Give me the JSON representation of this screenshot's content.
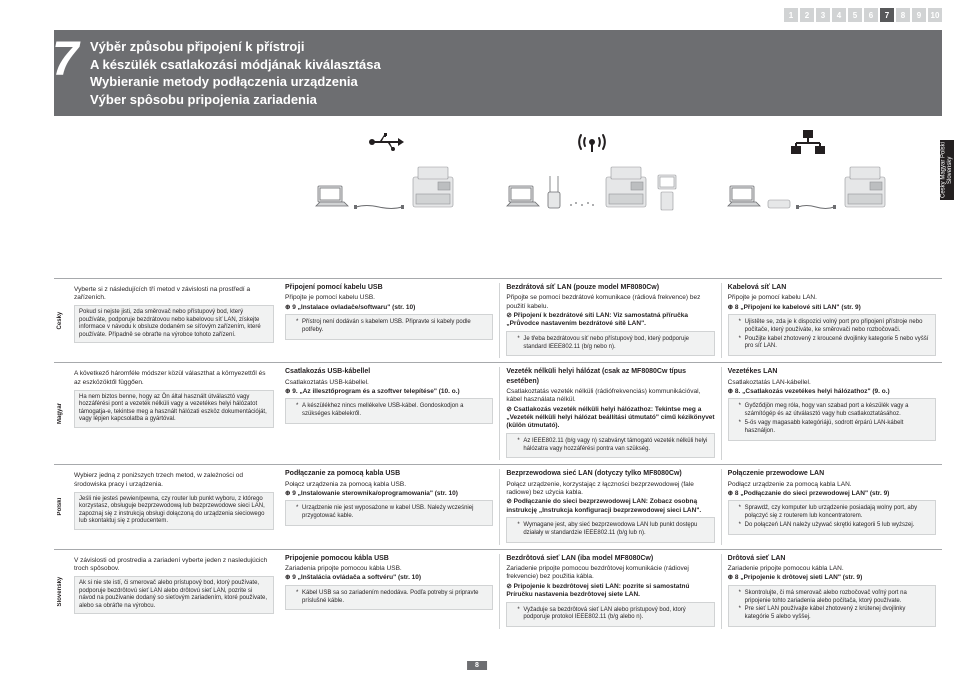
{
  "pager": {
    "items": [
      "1",
      "2",
      "3",
      "4",
      "5",
      "6",
      "7",
      "8",
      "9",
      "10"
    ],
    "active": 7
  },
  "side_tab": "Česky  Magyar\nPolski  Slovensky",
  "page_number": "8",
  "header": {
    "num": "7",
    "lines": [
      "Výběr způsobu připojení k přístroji",
      "A készülék csatlakozási módjának kiválasztása",
      "Wybieranie metody podłączenia urządzenia",
      "Výber spôsobu pripojenia zariadenia"
    ]
  },
  "rows": [
    {
      "lang": "Česky",
      "intro": "Vyberte si z následujících tří metod v závislosti na prostředí a zařízeních.",
      "intro_sub": "Pokud si nejste jisti, zda směrovač nebo přístupový bod, který používáte, podporuje bezdrátovou nebo kabelovou síť LAN, získejte informace v návodu k obsluze dodaném se síťovým zařízením, které používáte. Případně se obraťte na výrobce tohoto zařízení.",
      "c1": {
        "title": "Připojení pomocí kabelu USB",
        "desc": "Připojte je pomocí kabelu USB.",
        "ref": "9 „Instalace ovladače/softwaru\" (str. 10)",
        "note": [
          "Přístroj není dodáván s kabelem USB. Připravte si kabely podle potřeby."
        ]
      },
      "c2": {
        "title": "Bezdrátová síť LAN (pouze model MF8080Cw)",
        "desc": "Připojte se pomocí bezdrátové komunikace (rádiová frekvence) bez použití kabelu.",
        "warn": "Připojení k bezdrátové síti LAN: Viz samostatná příručka „Průvodce nastavením bezdrátové sítě LAN\".",
        "note": [
          "Je třeba bezdrátovou síť nebo přístupový bod, který podporuje standard IEEE802.11 (b/g nebo n)."
        ]
      },
      "c3": {
        "title": "Kabelová síť LAN",
        "desc": "Připojte je pomocí kabelu LAN.",
        "ref": "8 „Připojení ke kabelové síti LAN\" (str. 9)",
        "note": [
          "Ujistěte se, zda je k dispozici volný port pro připojení přístroje nebo počítače, který používáte, ke směrovači nebo rozbočovači.",
          "Použijte kabel zhotovený z kroucené dvojlinky kategorie 5 nebo vyšší pro síť LAN."
        ]
      }
    },
    {
      "lang": "Magyar",
      "intro": "A következő háromféle módszer közül választhat a környezettől és az eszközöktől függően.",
      "intro_sub": "Ha nem biztos benne, hogy az Ön által használt útválasztó vagy hozzáférési pont a vezeték nélküli vagy a vezetékes helyi hálózatot támogatja-e, tekintse meg a használt hálózati eszköz dokumentációját, vagy lépjen kapcsolatba a gyártóval.",
      "c1": {
        "title": "Csatlakozás USB-kábellel",
        "desc": "Csatlakoztatás USB-kábellel.",
        "ref": "9. „Az illesztőprogram és a szoftver telepítése\" (10. o.)",
        "note": [
          "A készülékhez nincs mellékelve USB-kábel. Gondoskodjon a szükséges kábelekről."
        ]
      },
      "c2": {
        "title": "Vezeték nélküli helyi hálózat (csak az MF8080Cw típus esetében)",
        "desc": "Csatlakoztatás vezeték nélküli (rádiófrekvenciás) kommunikációval, kábel használata nélkül.",
        "warn": "Csatlakozás vezeték nélküli helyi hálózathoz: Tekintse meg a „Vezeték nélküli helyi hálózat beállítási útmutató\" című kézikönyvet (külön útmutató).",
        "note": [
          "Az IEEE802.11 (b/g vagy n) szabványt támogató vezeték nélküli helyi hálózatra vagy hozzáférési pontra van szükség."
        ]
      },
      "c3": {
        "title": "Vezetékes LAN",
        "desc": "Csatlakoztatás LAN-kábellel.",
        "ref": "8. „Csatlakozás vezetékes helyi hálózathoz\" (9. o.)",
        "note": [
          "Győződjön meg róla, hogy van szabad port a készülék vagy a számítógép és az útválasztó vagy hub csatlakoztatásához.",
          "5-ös vagy magasabb kategóriájú, sodrott érpárú LAN-kábelt használjon."
        ]
      }
    },
    {
      "lang": "Polski",
      "intro": "Wybierz jedną z poniższych trzech metod, w zależności od środowiska pracy i urządzenia.",
      "intro_sub": "Jeśli nie jesteś pewien/pewna, czy router lub punkt wyboru, z którego korzystasz, obsługuje bezprzewodową lub bezprzewodowe sieci LAN, zapoznaj się z instrukcją obsługi dołączoną do urządzenia sieciowego lub skontaktuj się z producentem.",
      "c1": {
        "title": "Podłączanie za pomocą kabla USB",
        "desc": "Połącz urządzenia za pomocą kabla USB.",
        "ref": "9 „Instalowanie sterownika/oprogramowania\" (str. 10)",
        "note": [
          "Urządzenie nie jest wyposażone w kabel USB. Należy wcześniej przygotować kable."
        ]
      },
      "c2": {
        "title": "Bezprzewodowa sieć LAN (dotyczy tylko MF8080Cw)",
        "desc": "Połącz urządzenie, korzystając z łączności bezprzewodowej (fale radiowe) bez użycia kabla.",
        "warn": "Podłączanie do sieci bezprzewodowej LAN: Zobacz osobną instrukcję „Instrukcja konfiguracji bezprzewodowej sieci LAN\".",
        "note": [
          "Wymagane jest, aby sieć bezprzewodowa LAN lub punkt dostępu działały w standardzie IEEE802.11 (b/g lub n)."
        ]
      },
      "c3": {
        "title": "Połączenie przewodowe LAN",
        "desc": "Podłącz urządzenie za pomocą kabla LAN.",
        "ref": "8 „Podłączanie do sieci przewodowej LAN\" (str. 9)",
        "note": [
          "Sprawdź, czy komputer lub urządzenie posiadają wolny port, aby połączyć się z routerem lub koncentratorem.",
          "Do połączeń LAN należy używać skrętki kategorii 5 lub wyższej."
        ]
      }
    },
    {
      "lang": "Slovensky",
      "intro": "V závislosti od prostredia a zariadení vyberte jeden z nasledujúcich troch spôsobov.",
      "intro_sub": "Ak si nie ste istí, či smerovač alebo prístupový bod, ktorý používate, podporuje bezdrôtovú sieť LAN alebo drôtovú sieť LAN, pozrite si návod na používanie dodaný so sieťovým zariadením, ktoré používate, alebo sa obráťte na výrobcu.",
      "c1": {
        "title": "Pripojenie pomocou kábla USB",
        "desc": "Zariadenia pripojte pomocou kábla USB.",
        "ref": "9 „Inštalácia ovládača a softvéru\" (str. 10)",
        "note": [
          "Kábel USB sa so zariadením nedodáva. Podľa potreby si pripravte príslušné káble."
        ]
      },
      "c2": {
        "title": "Bezdrôtová sieť LAN (iba model MF8080Cw)",
        "desc": "Zariadenie pripojte pomocou bezdrôtovej komunikácie (rádiovej frekvencie) bez použitia kábla.",
        "warn": "Pripojenie k bezdrôtovej sieti LAN: pozrite si samostatnú Príručku nastavenia bezdrôtovej siete LAN.",
        "note": [
          "Vyžaduje sa bezdrôtová sieť LAN alebo prístupový bod, ktorý podporuje protokol IEEE802.11 (b/g alebo n)."
        ]
      },
      "c3": {
        "title": "Drôtová sieť LAN",
        "desc": "Zariadenie pripojte pomocou kábla LAN.",
        "ref": "8 „Pripojenie k drôtovej sieti LAN\" (str. 9)",
        "note": [
          "Skontrolujte, či má smerovač alebo rozbočovač voľný port na pripojenie tohto zariadenia alebo počítača, ktorý používate.",
          "Pre sieť LAN používajte kábel zhotovený z krútenej dvojlinky kategórie 5 alebo vyššej."
        ]
      }
    }
  ],
  "colors": {
    "header_bg": "#6d6e71",
    "pager_inactive": "#d1d3d4",
    "pager_active": "#58595b",
    "note_bg": "#f1f2f2",
    "border": "#a7a9ac"
  }
}
